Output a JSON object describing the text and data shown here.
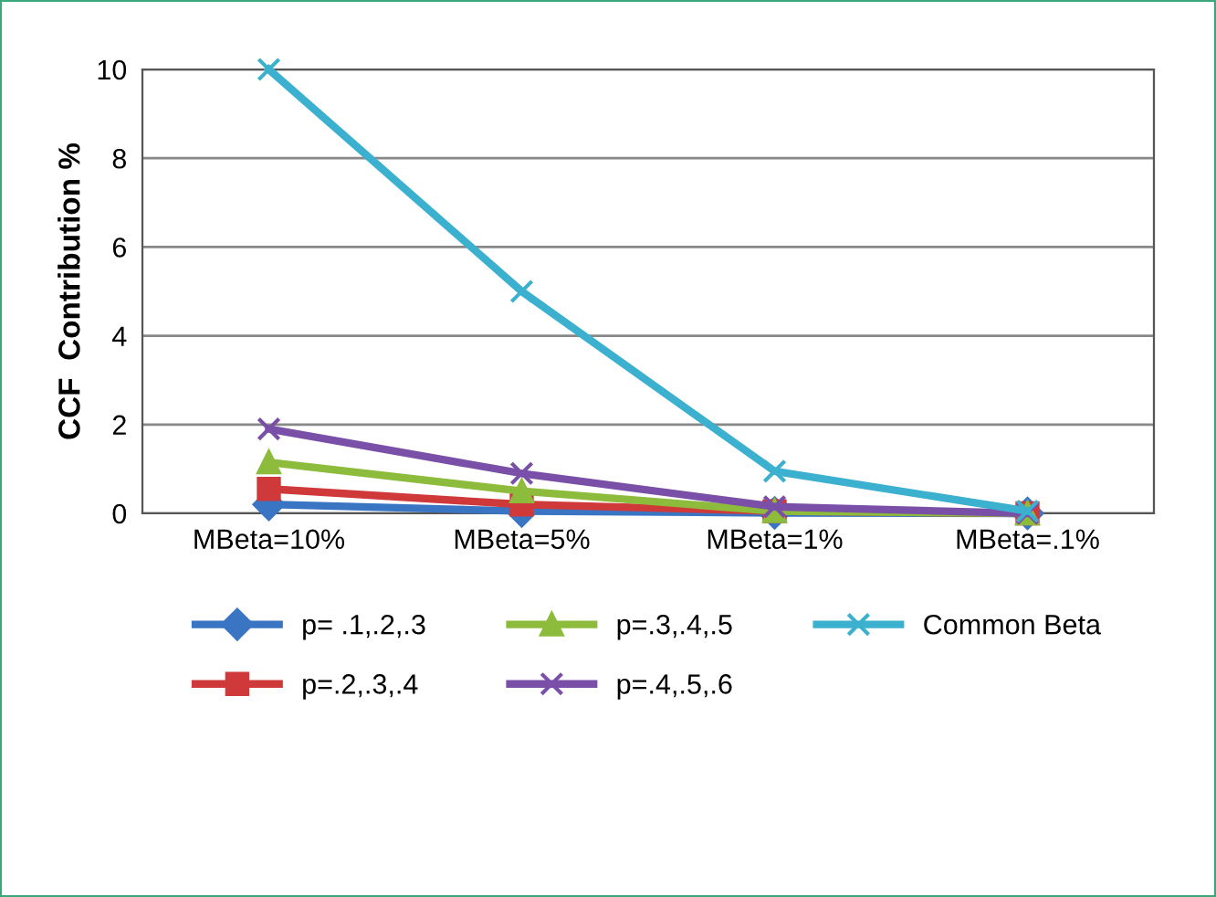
{
  "chart_data": {
    "type": "line",
    "ylabel": "CCF  Contribution %",
    "categories": [
      "MBeta=10%",
      "MBeta=5%",
      "MBeta=1%",
      "MBeta=.1%"
    ],
    "ylim": [
      0,
      10
    ],
    "yticks": [
      0,
      2,
      4,
      6,
      8,
      10
    ],
    "grid": "y",
    "legend": "bottom",
    "series": [
      {
        "name": "p= .1,.2,.3",
        "color": "#3a75c4",
        "marker": "diamond",
        "values": [
          0.2,
          0.05,
          0.01,
          0
        ]
      },
      {
        "name": "p=.2,.3,.4",
        "color": "#d0393a",
        "marker": "square",
        "values": [
          0.55,
          0.2,
          0.05,
          0
        ]
      },
      {
        "name": "p=.3,.4,.5",
        "color": "#8dbb3c",
        "marker": "triangle",
        "values": [
          1.15,
          0.5,
          0.05,
          0
        ]
      },
      {
        "name": "p=.4,.5,.6",
        "color": "#7a4fa8",
        "marker": "cross",
        "values": [
          1.9,
          0.9,
          0.15,
          0
        ]
      },
      {
        "name": "Common Beta",
        "color": "#3bb0cf",
        "marker": "cross",
        "values": [
          10,
          5,
          0.95,
          0.05
        ]
      }
    ]
  }
}
